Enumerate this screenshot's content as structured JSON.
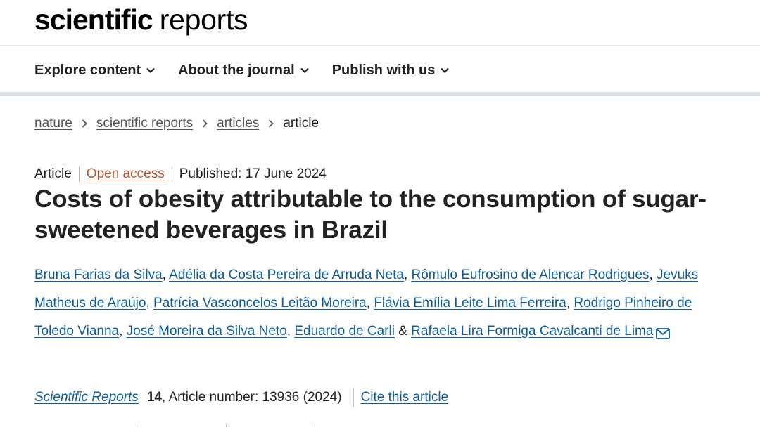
{
  "header": {
    "logo_bold": "scientific",
    "logo_light": "reports"
  },
  "nav": {
    "items": [
      {
        "label": "Explore content"
      },
      {
        "label": "About the journal"
      },
      {
        "label": "Publish with us"
      }
    ]
  },
  "breadcrumb": [
    "nature",
    "scientific reports",
    "articles",
    "article"
  ],
  "article": {
    "type": "Article",
    "access": "Open access",
    "published": "Published: 17 June 2024",
    "title": "Costs of obesity attributable to the consumption of sugar-sweetened beverages in Brazil",
    "authors": [
      "Bruna Farias da Silva",
      "Adélia da Costa Pereira de Arruda Neta",
      "Rômulo Eufrosino de Alencar Rodrigues",
      "Jevuks Matheus de Araújo",
      "Patrícia Vasconcelos Leitão Moreira",
      "Flávia Emília Leite Lima Ferreira",
      "Rodrigo Pinheiro de Toledo Vianna",
      "José Moreira da Silva Neto",
      "Eduardo de Carli",
      "Rafaela Lira Formiga Cavalcanti de Lima"
    ],
    "author_sep": ", ",
    "author_last_sep": " & "
  },
  "citation": {
    "journal": "Scientific Reports",
    "volume": "14",
    "rest": ", Article number: 13936 (2024)",
    "cite_label": "Cite this article"
  },
  "icons": {
    "chevron": "chevron-down-icon",
    "breadcrumb_sep": "chevron-right-icon",
    "mail": "envelope-icon"
  },
  "colors": {
    "link": "#0f5c99",
    "open_access": "#b4532d",
    "text": "#222222",
    "nav_bar": "#dadfe3"
  }
}
